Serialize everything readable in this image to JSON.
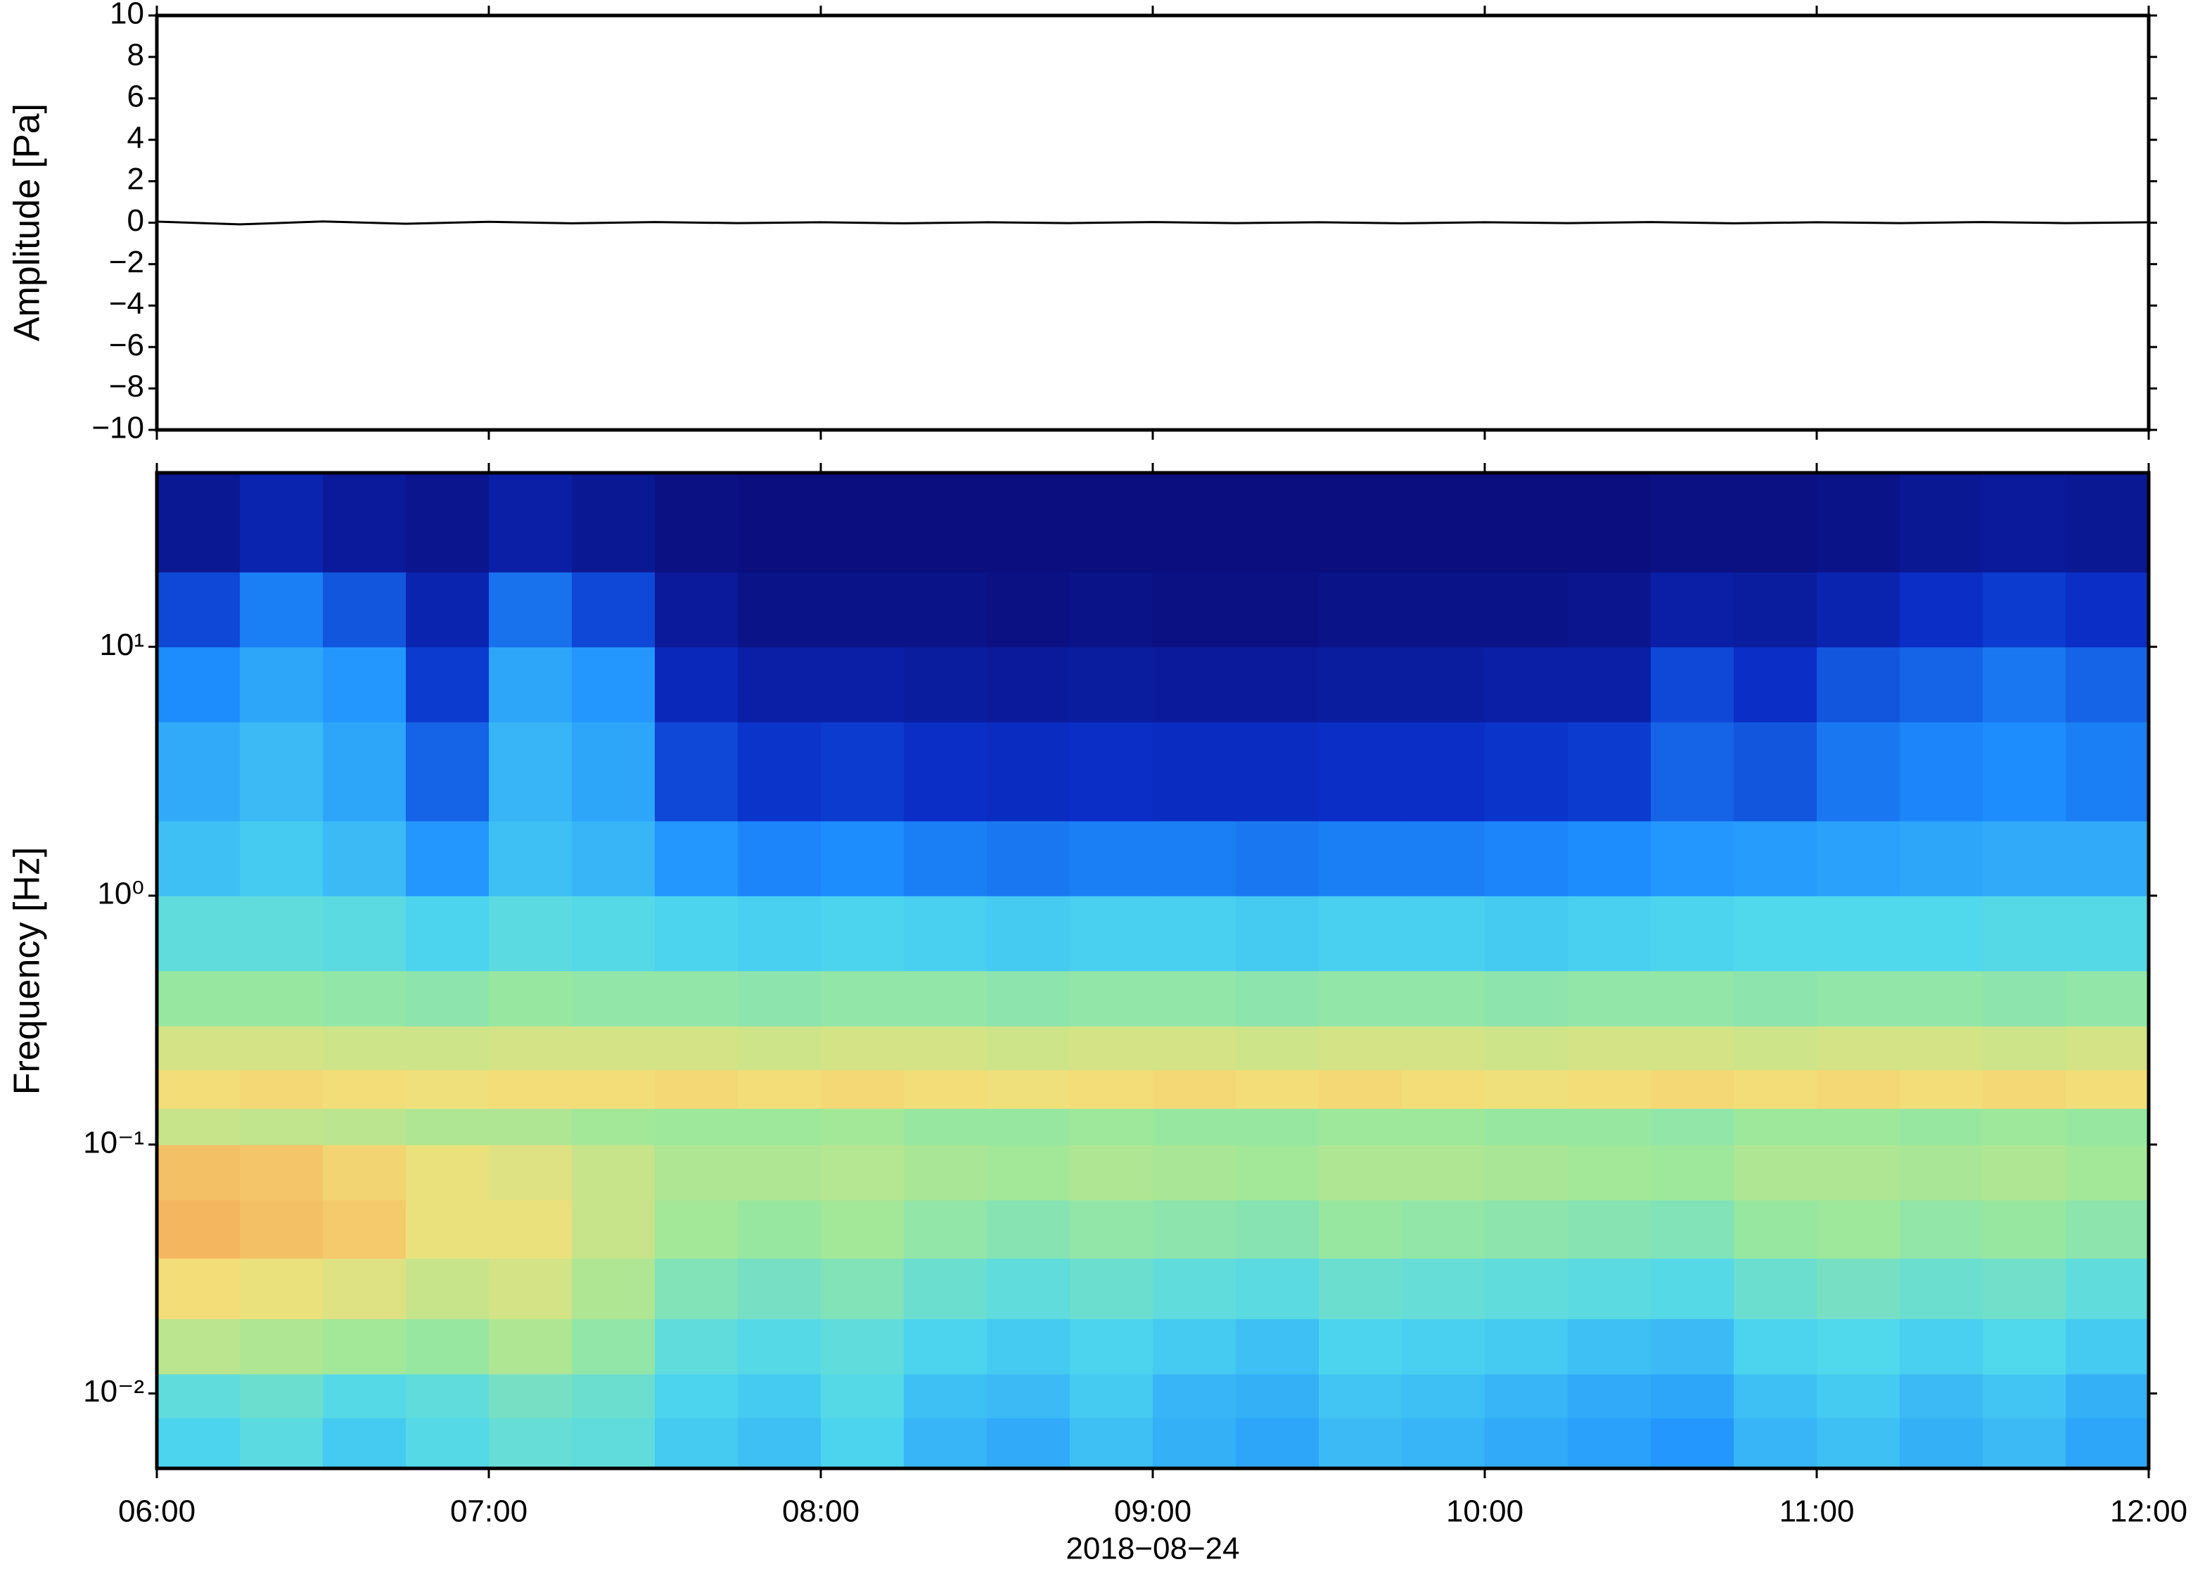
{
  "chart_data": [
    {
      "type": "line",
      "ylabel": "Amplitude [Pa]",
      "ylim": [
        -10,
        10
      ],
      "yticks": [
        {
          "value": -10,
          "label": "−10"
        },
        {
          "value": -8,
          "label": "−8"
        },
        {
          "value": -6,
          "label": "−6"
        },
        {
          "value": -4,
          "label": "−4"
        },
        {
          "value": -2,
          "label": "−2"
        },
        0,
        2,
        4,
        6,
        8,
        10
      ],
      "xlim": [
        "06:00",
        "12:00"
      ],
      "color": "#000000",
      "x": [
        "06:00",
        "06:15",
        "06:30",
        "06:45",
        "07:00",
        "07:15",
        "07:30",
        "07:45",
        "08:00",
        "08:15",
        "08:30",
        "08:45",
        "09:00",
        "09:15",
        "09:30",
        "09:45",
        "10:00",
        "10:15",
        "10:30",
        "10:45",
        "11:00",
        "11:15",
        "11:30",
        "11:45",
        "12:00"
      ],
      "values": [
        0.05,
        -0.08,
        0.06,
        -0.05,
        0.04,
        -0.03,
        0.03,
        -0.02,
        0.02,
        -0.03,
        0.02,
        -0.02,
        0.03,
        -0.02,
        0.02,
        -0.03,
        0.02,
        -0.02,
        0.03,
        -0.03,
        0.02,
        -0.02,
        0.03,
        -0.02,
        0.02
      ]
    },
    {
      "type": "heatmap",
      "ylabel": "Frequency [Hz]",
      "xlabel": "2018−08−24",
      "ylog": true,
      "ylim": [
        0.005,
        50
      ],
      "yticks": [
        {
          "value": 0.01,
          "label": "10⁻²"
        },
        {
          "value": 0.1,
          "label": "10⁻¹"
        },
        {
          "value": 1,
          "label": "10⁰"
        },
        {
          "value": 10,
          "label": "10¹"
        }
      ],
      "xlim": [
        "06:00",
        "12:00"
      ],
      "xticks": [
        "06:00",
        "07:00",
        "08:00",
        "09:00",
        "10:00",
        "11:00",
        "12:00"
      ],
      "xbins": [
        "06:00",
        "06:15",
        "06:30",
        "06:45",
        "07:00",
        "07:15",
        "07:30",
        "07:45",
        "08:00",
        "08:15",
        "08:30",
        "08:45",
        "09:00",
        "09:15",
        "09:30",
        "09:45",
        "10:00",
        "10:15",
        "10:30",
        "10:45",
        "11:00",
        "11:15",
        "11:30",
        "11:45",
        "12:00"
      ],
      "ybins": [
        0.005,
        0.008,
        0.012,
        0.02,
        0.035,
        0.06,
        0.1,
        0.14,
        0.2,
        0.3,
        0.5,
        1,
        2,
        5,
        10,
        20,
        50
      ],
      "zlim": [
        0,
        1
      ],
      "colormap": [
        "#0b0b78",
        "#0a2fc8",
        "#1e90ff",
        "#4fd8ee",
        "#9ee89a",
        "#f3e07a",
        "#f59b4e",
        "#d94a2a"
      ],
      "z": [
        [
          0.42,
          0.45,
          0.4,
          0.44,
          0.47,
          0.46,
          0.4,
          0.38,
          0.42,
          0.36,
          0.34,
          0.38,
          0.35,
          0.33,
          0.37,
          0.36,
          0.34,
          0.32,
          0.3,
          0.36,
          0.38,
          0.35,
          0.37,
          0.33
        ],
        [
          0.46,
          0.48,
          0.44,
          0.46,
          0.5,
          0.48,
          0.42,
          0.4,
          0.44,
          0.38,
          0.37,
          0.4,
          0.36,
          0.35,
          0.39,
          0.38,
          0.36,
          0.34,
          0.33,
          0.38,
          0.4,
          0.37,
          0.39,
          0.35
        ],
        [
          0.62,
          0.6,
          0.58,
          0.56,
          0.6,
          0.55,
          0.46,
          0.44,
          0.46,
          0.42,
          0.4,
          0.42,
          0.4,
          0.38,
          0.42,
          0.41,
          0.4,
          0.38,
          0.37,
          0.42,
          0.43,
          0.41,
          0.43,
          0.4
        ],
        [
          0.72,
          0.7,
          0.68,
          0.64,
          0.66,
          0.6,
          0.52,
          0.5,
          0.52,
          0.48,
          0.46,
          0.48,
          0.46,
          0.45,
          0.48,
          0.47,
          0.46,
          0.45,
          0.44,
          0.48,
          0.5,
          0.48,
          0.49,
          0.46
        ],
        [
          0.8,
          0.78,
          0.76,
          0.7,
          0.7,
          0.64,
          0.58,
          0.56,
          0.58,
          0.55,
          0.53,
          0.55,
          0.54,
          0.53,
          0.56,
          0.55,
          0.54,
          0.53,
          0.52,
          0.56,
          0.57,
          0.55,
          0.56,
          0.54
        ],
        [
          0.78,
          0.77,
          0.74,
          0.7,
          0.68,
          0.64,
          0.6,
          0.6,
          0.61,
          0.59,
          0.58,
          0.6,
          0.59,
          0.58,
          0.6,
          0.6,
          0.59,
          0.58,
          0.57,
          0.6,
          0.6,
          0.59,
          0.6,
          0.58
        ],
        [
          0.64,
          0.63,
          0.62,
          0.6,
          0.6,
          0.58,
          0.57,
          0.57,
          0.58,
          0.56,
          0.56,
          0.57,
          0.56,
          0.56,
          0.57,
          0.57,
          0.56,
          0.56,
          0.55,
          0.57,
          0.57,
          0.56,
          0.57,
          0.56
        ],
        [
          0.72,
          0.73,
          0.72,
          0.71,
          0.72,
          0.72,
          0.73,
          0.72,
          0.73,
          0.72,
          0.71,
          0.72,
          0.73,
          0.72,
          0.73,
          0.72,
          0.71,
          0.72,
          0.73,
          0.72,
          0.73,
          0.72,
          0.73,
          0.72
        ],
        [
          0.66,
          0.66,
          0.65,
          0.65,
          0.66,
          0.66,
          0.66,
          0.65,
          0.66,
          0.66,
          0.65,
          0.66,
          0.66,
          0.65,
          0.66,
          0.66,
          0.65,
          0.66,
          0.66,
          0.65,
          0.66,
          0.66,
          0.65,
          0.66
        ],
        [
          0.56,
          0.56,
          0.55,
          0.54,
          0.56,
          0.55,
          0.55,
          0.54,
          0.55,
          0.55,
          0.54,
          0.55,
          0.55,
          0.54,
          0.55,
          0.55,
          0.54,
          0.55,
          0.55,
          0.54,
          0.55,
          0.55,
          0.54,
          0.55
        ],
        [
          0.46,
          0.46,
          0.45,
          0.42,
          0.45,
          0.44,
          0.42,
          0.41,
          0.42,
          0.41,
          0.4,
          0.41,
          0.41,
          0.4,
          0.41,
          0.41,
          0.4,
          0.41,
          0.42,
          0.43,
          0.43,
          0.43,
          0.44,
          0.44
        ],
        [
          0.38,
          0.4,
          0.37,
          0.3,
          0.38,
          0.36,
          0.3,
          0.27,
          0.28,
          0.26,
          0.25,
          0.26,
          0.26,
          0.25,
          0.26,
          0.26,
          0.27,
          0.28,
          0.3,
          0.31,
          0.32,
          0.33,
          0.34,
          0.34
        ],
        [
          0.34,
          0.37,
          0.33,
          0.22,
          0.36,
          0.33,
          0.18,
          0.15,
          0.16,
          0.14,
          0.13,
          0.14,
          0.13,
          0.13,
          0.14,
          0.14,
          0.15,
          0.16,
          0.22,
          0.2,
          0.25,
          0.27,
          0.28,
          0.26
        ],
        [
          0.28,
          0.33,
          0.3,
          0.16,
          0.33,
          0.3,
          0.12,
          0.08,
          0.08,
          0.07,
          0.06,
          0.07,
          0.06,
          0.06,
          0.07,
          0.07,
          0.08,
          0.08,
          0.18,
          0.14,
          0.2,
          0.22,
          0.25,
          0.22
        ],
        [
          0.18,
          0.26,
          0.2,
          0.1,
          0.24,
          0.18,
          0.06,
          0.03,
          0.03,
          0.03,
          0.02,
          0.03,
          0.02,
          0.02,
          0.03,
          0.03,
          0.03,
          0.04,
          0.08,
          0.07,
          0.1,
          0.14,
          0.16,
          0.14
        ],
        [
          0.05,
          0.1,
          0.06,
          0.04,
          0.08,
          0.05,
          0.02,
          0.01,
          0.01,
          0.01,
          0.01,
          0.01,
          0.01,
          0.01,
          0.01,
          0.01,
          0.01,
          0.01,
          0.02,
          0.02,
          0.03,
          0.05,
          0.06,
          0.05
        ]
      ]
    }
  ]
}
